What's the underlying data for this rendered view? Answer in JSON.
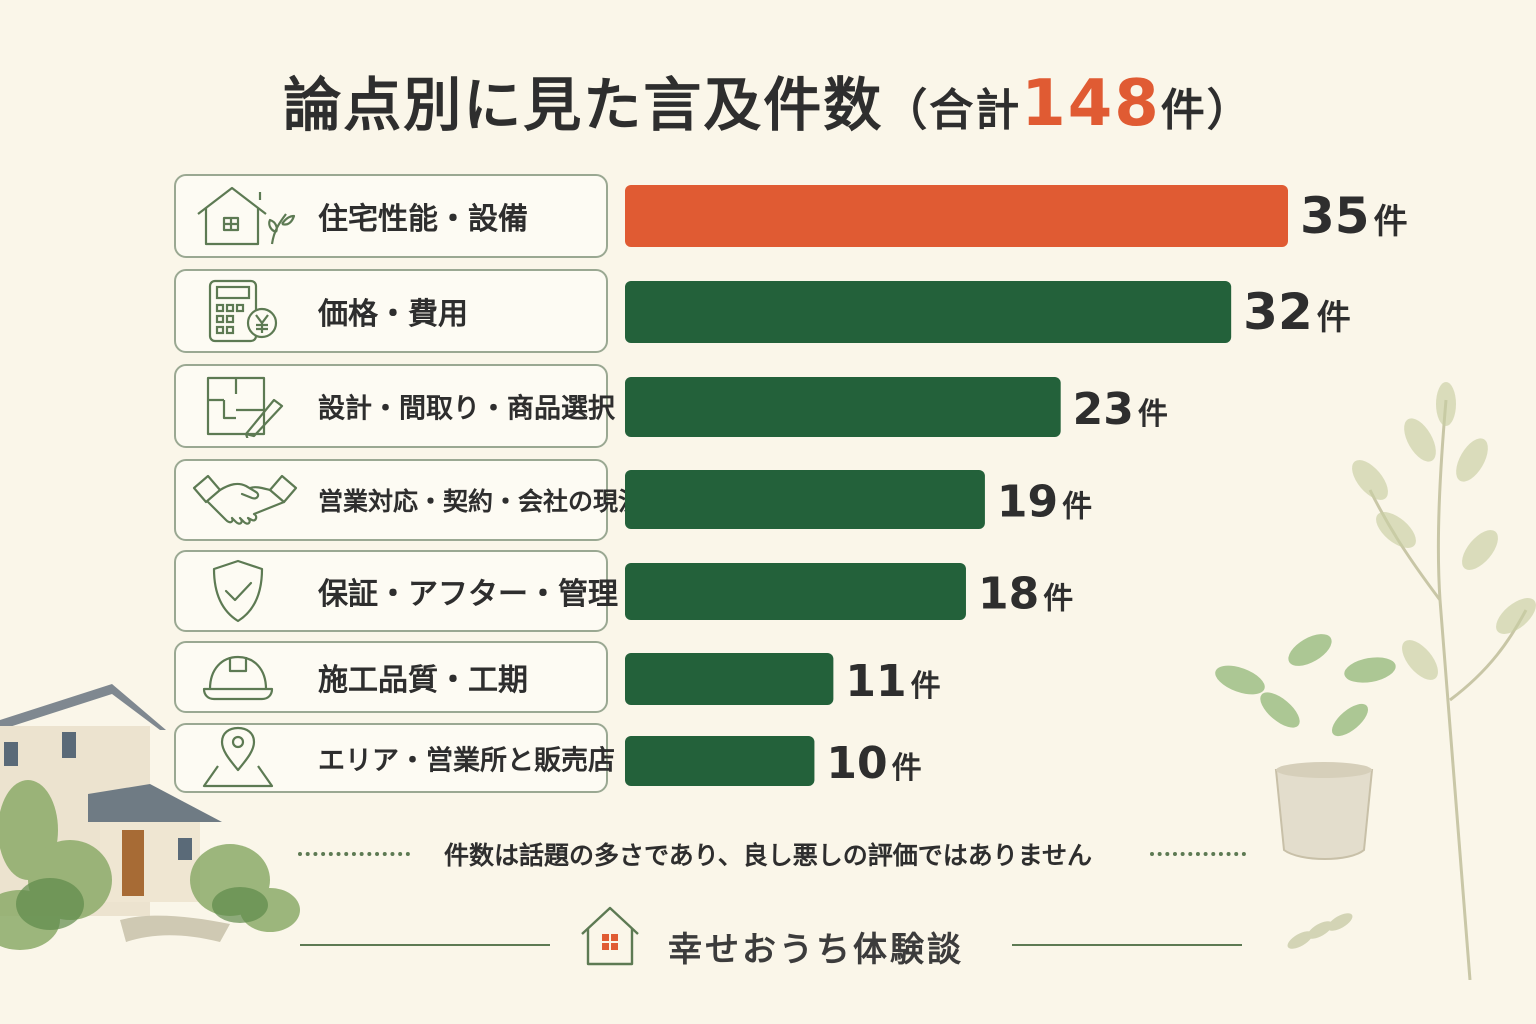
{
  "title": {
    "main": "論点別に見た言及件数",
    "open_paren": "（合計",
    "total": "148",
    "close_paren": "件）"
  },
  "chart_data": {
    "type": "bar",
    "orientation": "horizontal",
    "categories": [
      "住宅性能・設備",
      "価格・費用",
      "設計・間取り・商品選択",
      "営業対応・契約・会社の現況",
      "保証・アフター・管理",
      "施工品質・工期",
      "エリア・営業所と販売店"
    ],
    "values": [
      35,
      32,
      23,
      19,
      18,
      11,
      10
    ],
    "value_labels": [
      "35件",
      "32件",
      "23件",
      "19件",
      "18件",
      "11件",
      "10件"
    ],
    "highlight_color": "#e05b33",
    "bar_color": "#23613a",
    "icons": [
      "house-icon",
      "calculator-icon",
      "floorplan-icon",
      "handshake-icon",
      "shield-icon",
      "helmet-icon",
      "location-icon"
    ],
    "grid": false,
    "legend": "none"
  },
  "footer": {
    "note": "件数は話題の多さであり、良し悪しの評価ではありません",
    "brand": "幸せおうち体験談"
  }
}
